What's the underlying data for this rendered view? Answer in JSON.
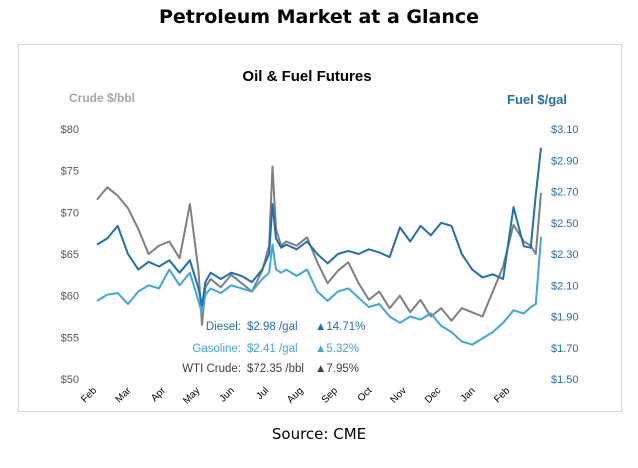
{
  "page_title": "Petroleum Market at a Glance",
  "source": "Source: CME",
  "colors": {
    "diesel": "#1f6fb5",
    "gasoline": "#3da7de",
    "crude": "#7f7f7f",
    "left_axis_label": "#a6a6a6",
    "right_axis_label": "#1f6fb5",
    "axis_text": "#595959"
  },
  "chart_data": {
    "type": "line",
    "title": "Oil & Fuel Futures",
    "ylabel_left": "Crude $/bbl",
    "ylabel_right": "Fuel $/gal",
    "ylim_left": [
      50,
      80
    ],
    "ylim_right": [
      1.5,
      3.1
    ],
    "yticks_left": [
      "$80",
      "$75",
      "$70",
      "$65",
      "$60",
      "$55",
      "$50"
    ],
    "yticks_right": [
      "$3.10",
      "$2.90",
      "$2.70",
      "$2.50",
      "$2.30",
      "$2.10",
      "$1.90",
      "$1.70",
      "$1.50"
    ],
    "x_months": [
      "Feb",
      "Mar",
      "Apr",
      "May",
      "Jun",
      "Jul",
      "Aug",
      "Sep",
      "Oct",
      "Nov",
      "Dec",
      "Jan",
      "Feb"
    ],
    "legend": [
      {
        "name": "Diesel:",
        "value": "$2.98 /gal",
        "change": "▲14.71%",
        "color_key": "diesel"
      },
      {
        "name": "Gasoline:",
        "value": "$2.41 /gal",
        "change": "▲5.32%",
        "color_key": "gasoline"
      },
      {
        "name": "WTI Crude:",
        "value": "$72.35 /bbl",
        "change": "▲7.95%",
        "color_key": "crude"
      }
    ],
    "series": [
      {
        "name": "Diesel",
        "axis": "right",
        "x": [
          0,
          0.3,
          0.6,
          0.9,
          1.2,
          1.5,
          1.8,
          2.1,
          2.4,
          2.7,
          2.95,
          3.05,
          3.15,
          3.3,
          3.6,
          3.9,
          4.2,
          4.5,
          4.8,
          5.0,
          5.1,
          5.2,
          5.35,
          5.5,
          5.8,
          6.1,
          6.4,
          6.7,
          7.0,
          7.3,
          7.6,
          7.9,
          8.2,
          8.5,
          8.8,
          9.1,
          9.4,
          9.7,
          10.0,
          10.3,
          10.6,
          10.9,
          11.2,
          11.5,
          11.8,
          12.1,
          12.4,
          12.6,
          12.75,
          12.9
        ],
        "values": [
          2.36,
          2.4,
          2.48,
          2.3,
          2.2,
          2.25,
          2.22,
          2.26,
          2.18,
          2.26,
          2.08,
          1.97,
          2.12,
          2.18,
          2.14,
          2.18,
          2.16,
          2.12,
          2.2,
          2.3,
          2.62,
          2.4,
          2.34,
          2.36,
          2.33,
          2.38,
          2.3,
          2.24,
          2.3,
          2.32,
          2.3,
          2.33,
          2.31,
          2.28,
          2.47,
          2.38,
          2.48,
          2.42,
          2.5,
          2.48,
          2.3,
          2.2,
          2.15,
          2.17,
          2.14,
          2.6,
          2.35,
          2.34,
          2.68,
          2.98
        ]
      },
      {
        "name": "Gasoline",
        "axis": "right",
        "x": [
          0,
          0.3,
          0.6,
          0.9,
          1.2,
          1.5,
          1.8,
          2.1,
          2.4,
          2.7,
          2.95,
          3.05,
          3.15,
          3.3,
          3.6,
          3.9,
          4.2,
          4.5,
          4.8,
          5.0,
          5.1,
          5.2,
          5.35,
          5.5,
          5.8,
          6.1,
          6.4,
          6.7,
          7.0,
          7.3,
          7.6,
          7.9,
          8.2,
          8.5,
          8.8,
          9.1,
          9.4,
          9.7,
          10.0,
          10.3,
          10.6,
          10.9,
          11.2,
          11.5,
          11.8,
          12.1,
          12.4,
          12.6,
          12.75,
          12.9
        ],
        "values": [
          2.0,
          2.04,
          2.05,
          1.98,
          2.06,
          2.1,
          2.08,
          2.2,
          2.1,
          2.18,
          2.0,
          1.92,
          2.04,
          2.08,
          2.05,
          2.1,
          2.08,
          2.06,
          2.14,
          2.18,
          2.36,
          2.2,
          2.18,
          2.2,
          2.16,
          2.2,
          2.06,
          2.0,
          2.06,
          2.08,
          2.02,
          1.96,
          1.98,
          1.9,
          1.86,
          1.9,
          1.88,
          1.92,
          1.84,
          1.8,
          1.74,
          1.72,
          1.76,
          1.8,
          1.86,
          1.94,
          1.92,
          1.96,
          1.98,
          2.41
        ]
      },
      {
        "name": "WTI Crude",
        "axis": "left",
        "x": [
          0,
          0.3,
          0.6,
          0.9,
          1.2,
          1.5,
          1.8,
          2.1,
          2.4,
          2.7,
          2.95,
          3.05,
          3.15,
          3.3,
          3.6,
          3.9,
          4.2,
          4.5,
          4.8,
          5.0,
          5.1,
          5.2,
          5.35,
          5.5,
          5.8,
          6.1,
          6.4,
          6.7,
          7.0,
          7.3,
          7.6,
          7.9,
          8.2,
          8.5,
          8.8,
          9.1,
          9.4,
          9.7,
          10.0,
          10.3,
          10.6,
          10.9,
          11.2,
          11.5,
          11.8,
          12.1,
          12.4,
          12.6,
          12.75,
          12.9
        ],
        "values": [
          71.5,
          73.0,
          72.0,
          70.5,
          68.0,
          65.0,
          66.0,
          66.5,
          64.5,
          71.0,
          63.0,
          56.5,
          61.0,
          62.0,
          61.0,
          62.5,
          61.5,
          60.5,
          63.0,
          66.0,
          75.5,
          68.0,
          66.0,
          66.5,
          66.0,
          67.0,
          64.0,
          61.5,
          63.0,
          64.0,
          61.5,
          59.5,
          60.5,
          58.5,
          60.0,
          58.0,
          59.5,
          57.5,
          58.5,
          57.0,
          58.5,
          58.0,
          57.5,
          60.5,
          63.5,
          68.5,
          66.5,
          66.0,
          65.0,
          72.35
        ]
      }
    ]
  }
}
